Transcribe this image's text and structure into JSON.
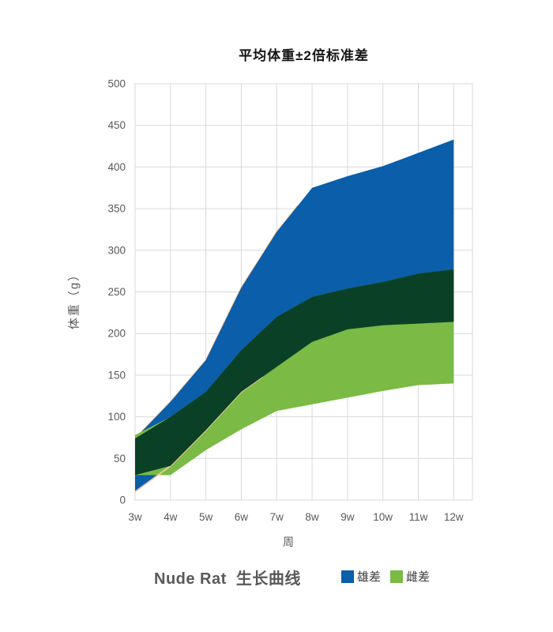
{
  "title": "平均体重±2倍标准差",
  "caption": "Nude Rat  生长曲线",
  "y_axis": {
    "label": "体重（g）"
  },
  "x_axis": {
    "label": "周"
  },
  "legend": [
    {
      "label": "雄差",
      "color": "#0A5EAA"
    },
    {
      "label": "雌差",
      "color": "#7ABA45"
    }
  ],
  "chart_data": {
    "type": "area",
    "subtype": "range-bands-with-overlap",
    "title": "平均体重±2倍标准差",
    "xlabel": "周",
    "ylabel": "体重（g）",
    "categories": [
      "3w",
      "4w",
      "5w",
      "6w",
      "7w",
      "8w",
      "9w",
      "10w",
      "11w",
      "12w"
    ],
    "yticks": [
      0,
      50,
      100,
      150,
      200,
      250,
      300,
      350,
      400,
      450,
      500
    ],
    "ylim": [
      0,
      500
    ],
    "grid": true,
    "legend_position": "bottom-right",
    "series": [
      {
        "name": "雄差",
        "role": "male-band",
        "color": "#0A5EAA",
        "low": [
          10,
          41,
          84,
          130,
          160,
          190,
          205,
          210,
          212,
          214
        ],
        "high": [
          74,
          118,
          168,
          255,
          322,
          375,
          389,
          401,
          417,
          433
        ]
      },
      {
        "name": "雌差",
        "role": "female-band",
        "color": "#7ABA45",
        "low": [
          30,
          30,
          60,
          85,
          107,
          115,
          123,
          131,
          138,
          140
        ],
        "high": [
          78,
          100,
          130,
          180,
          220,
          244,
          254,
          262,
          272,
          277
        ]
      }
    ],
    "overlap_color": "#0A4126",
    "accent_line_color": "#F5C9A2",
    "grid_color": "#D9D9D9"
  }
}
